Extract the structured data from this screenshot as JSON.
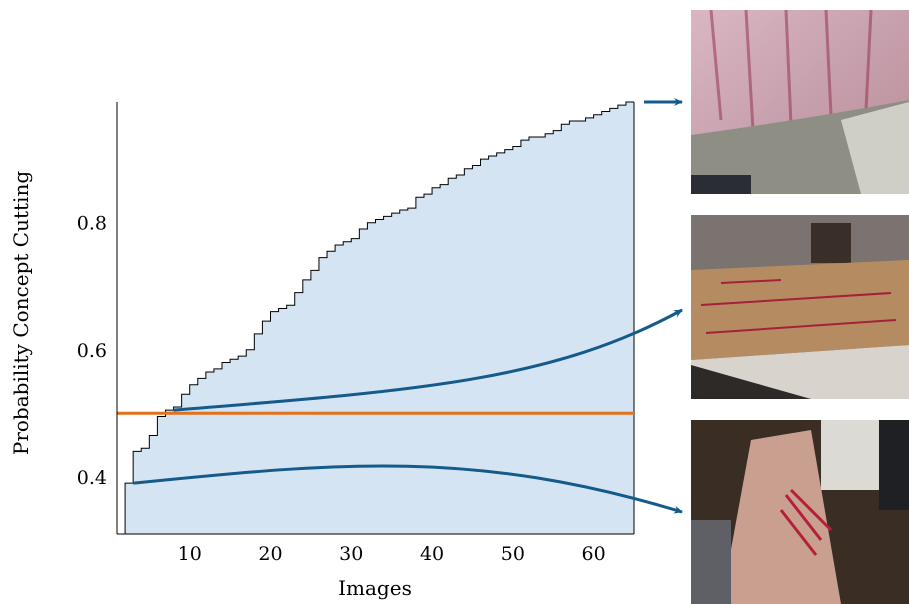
{
  "chart_data": {
    "type": "area",
    "xlabel": "Images",
    "ylabel": "Probability Concept Cutting",
    "xlim": [
      1,
      65
    ],
    "ylim": [
      0.31,
      0.99
    ],
    "x_ticks": [
      10,
      20,
      30,
      40,
      50,
      60
    ],
    "y_ticks": [
      0.4,
      0.6,
      0.8
    ],
    "grid": false,
    "series": [
      {
        "step": true,
        "fill_color": "#d5e4f2",
        "line_color": "#000000",
        "points": [
          [
            1,
            0.31
          ],
          [
            2,
            0.39
          ],
          [
            3,
            0.44
          ],
          [
            4,
            0.445
          ],
          [
            5,
            0.465
          ],
          [
            6,
            0.495
          ],
          [
            7,
            0.505
          ],
          [
            8,
            0.51
          ],
          [
            9,
            0.53
          ],
          [
            10,
            0.545
          ],
          [
            11,
            0.555
          ],
          [
            12,
            0.565
          ],
          [
            13,
            0.57
          ],
          [
            14,
            0.58
          ],
          [
            15,
            0.585
          ],
          [
            16,
            0.59
          ],
          [
            17,
            0.6
          ],
          [
            18,
            0.625
          ],
          [
            19,
            0.645
          ],
          [
            20,
            0.66
          ],
          [
            21,
            0.665
          ],
          [
            22,
            0.67
          ],
          [
            23,
            0.69
          ],
          [
            24,
            0.71
          ],
          [
            25,
            0.725
          ],
          [
            26,
            0.745
          ],
          [
            27,
            0.755
          ],
          [
            28,
            0.765
          ],
          [
            29,
            0.77
          ],
          [
            30,
            0.775
          ],
          [
            31,
            0.79
          ],
          [
            32,
            0.8
          ],
          [
            33,
            0.805
          ],
          [
            34,
            0.81
          ],
          [
            35,
            0.815
          ],
          [
            36,
            0.82
          ],
          [
            37,
            0.823
          ],
          [
            38,
            0.84
          ],
          [
            39,
            0.845
          ],
          [
            40,
            0.855
          ],
          [
            41,
            0.86
          ],
          [
            42,
            0.87
          ],
          [
            43,
            0.875
          ],
          [
            44,
            0.885
          ],
          [
            45,
            0.89
          ],
          [
            46,
            0.9
          ],
          [
            47,
            0.905
          ],
          [
            48,
            0.91
          ],
          [
            49,
            0.915
          ],
          [
            50,
            0.92
          ],
          [
            51,
            0.93
          ],
          [
            52,
            0.935
          ],
          [
            53,
            0.935
          ],
          [
            54,
            0.94
          ],
          [
            55,
            0.945
          ],
          [
            56,
            0.955
          ],
          [
            57,
            0.96
          ],
          [
            58,
            0.96
          ],
          [
            59,
            0.965
          ],
          [
            60,
            0.97
          ],
          [
            61,
            0.975
          ],
          [
            62,
            0.98
          ],
          [
            63,
            0.985
          ],
          [
            64,
            0.99
          ],
          [
            65,
            0.99
          ]
        ]
      }
    ],
    "threshold": {
      "y": 0.5,
      "color": "#e2711a"
    },
    "annotations": [
      {
        "type": "arrow",
        "from": [
          65,
          0.99
        ],
        "target": "top image",
        "color": "#145a8a"
      },
      {
        "type": "arrow",
        "from": [
          8,
          0.505
        ],
        "target": "middle image",
        "color": "#145a8a"
      },
      {
        "type": "arrow",
        "from": [
          3,
          0.39
        ],
        "target": "bottom image",
        "color": "#145a8a"
      }
    ]
  },
  "images": [
    {
      "name": "top-example-photo",
      "description_icon": "arm-photo"
    },
    {
      "name": "middle-example-photo",
      "description_icon": "arm-photo"
    },
    {
      "name": "bottom-example-photo",
      "description_icon": "arm-photo"
    }
  ],
  "colors": {
    "fill": "#d5e4f2",
    "threshold": "#e2711a",
    "arrow": "#145a8a"
  }
}
